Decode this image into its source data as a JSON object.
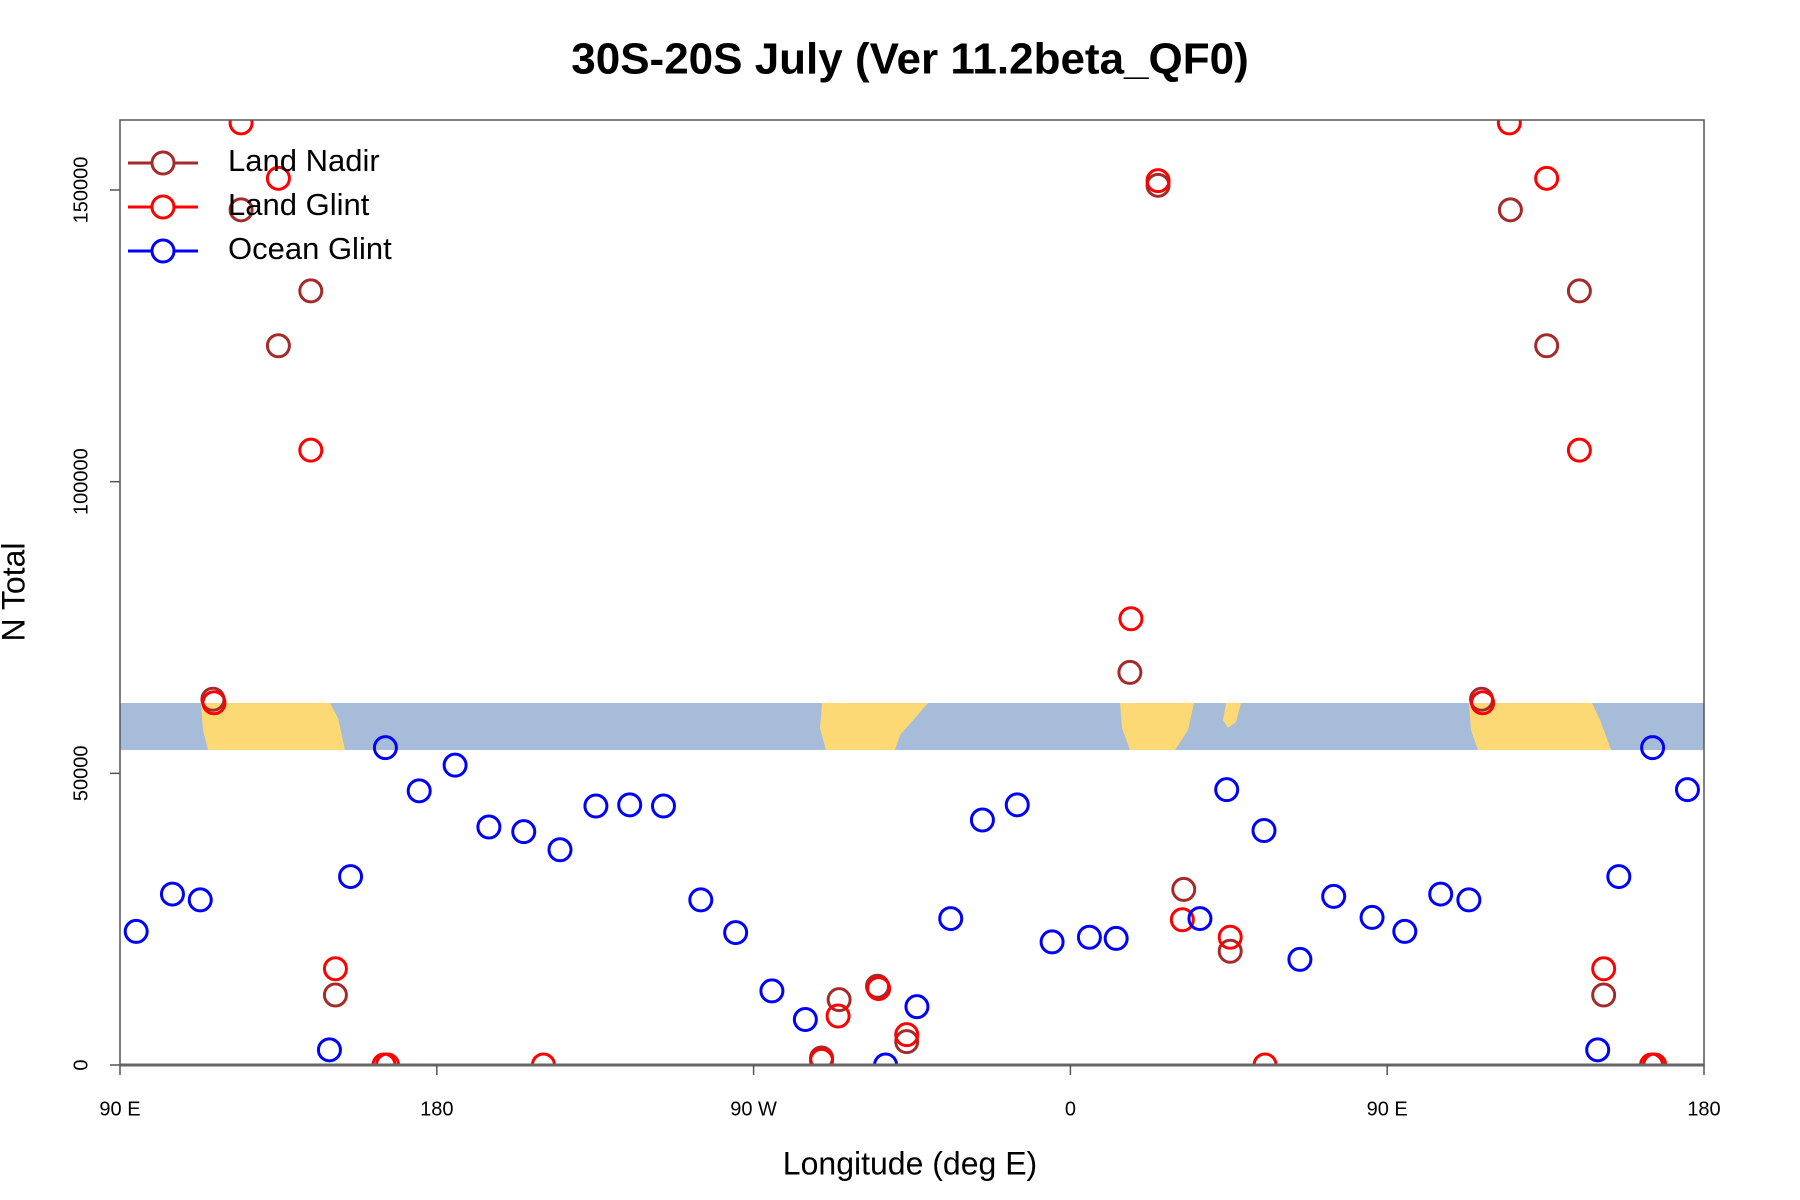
{
  "chart_data": {
    "type": "scatter",
    "title": "30S-20S July (Ver 11.2beta_QF0)",
    "x_label": "Longitude (deg E)",
    "y_label": "N Total",
    "xlim": [
      90,
      540
    ],
    "ylim": [
      0,
      162000
    ],
    "xticks": [
      {
        "value": 90,
        "label": "90 E"
      },
      180,
      {
        "value": 270,
        "label": "90 W"
      },
      {
        "value": 360,
        "label": "0"
      },
      {
        "value": 450,
        "label": "90 E"
      },
      {
        "value": 540,
        "label": "180"
      }
    ],
    "yticks": [
      0,
      50000,
      100000,
      150000
    ],
    "legend_position": "top-left",
    "series": [
      {
        "name": "Land Nadir",
        "color": "#a52a2a",
        "x": [
          116.4,
          124.4,
          135.0,
          144.2,
          151.2,
          294.3,
          305.2,
          313.5,
          289.3,
          376.9,
          384.9,
          392.2,
          405.4,
          476.8,
          485.0,
          495.3,
          504.6,
          511.5
        ],
        "values": [
          62700,
          146600,
          123300,
          132700,
          12000,
          11200,
          13500,
          4000,
          1200,
          67300,
          150800,
          30100,
          19500,
          62700,
          146600,
          123300,
          132700,
          12000
        ]
      },
      {
        "name": "Land Glint",
        "color": "#ff0000",
        "x": [
          116.7,
          124.4,
          135.0,
          144.2,
          151.2,
          165.0,
          166.0,
          210.3,
          289.3,
          294.0,
          305.5,
          313.5,
          377.2,
          384.9,
          391.8,
          405.4,
          415.3,
          477.1,
          484.7,
          495.3,
          504.6,
          511.5,
          525.1,
          526.0
        ],
        "values": [
          62100,
          161500,
          152000,
          105400,
          16500,
          0,
          0,
          0,
          800,
          8400,
          13100,
          5200,
          76500,
          151600,
          24900,
          21900,
          0,
          62100,
          161500,
          152000,
          105400,
          16500,
          0,
          0
        ]
      },
      {
        "name": "Ocean Glint",
        "color": "#0000ff",
        "x": [
          94.6,
          104.9,
          112.8,
          149.5,
          155.5,
          165.4,
          175.0,
          185.2,
          194.8,
          204.7,
          215.0,
          225.2,
          234.8,
          244.4,
          255.0,
          264.9,
          275.2,
          284.7,
          307.5,
          316.4,
          326.0,
          335.0,
          344.9,
          354.8,
          365.4,
          373.0,
          396.8,
          404.4,
          415.0,
          425.2,
          434.8,
          445.7,
          455.0,
          465.2,
          473.2,
          509.8,
          515.8,
          525.4,
          535.3
        ],
        "values": [
          22900,
          29300,
          28300,
          2600,
          32300,
          54400,
          47000,
          51400,
          40800,
          40000,
          36900,
          44400,
          44600,
          44400,
          28300,
          22700,
          12700,
          7800,
          0,
          10000,
          25100,
          42000,
          44600,
          21100,
          21900,
          21700,
          25100,
          47200,
          40200,
          18100,
          28900,
          25300,
          22900,
          29300,
          28300,
          2600,
          32300,
          54400,
          47200
        ]
      }
    ]
  }
}
